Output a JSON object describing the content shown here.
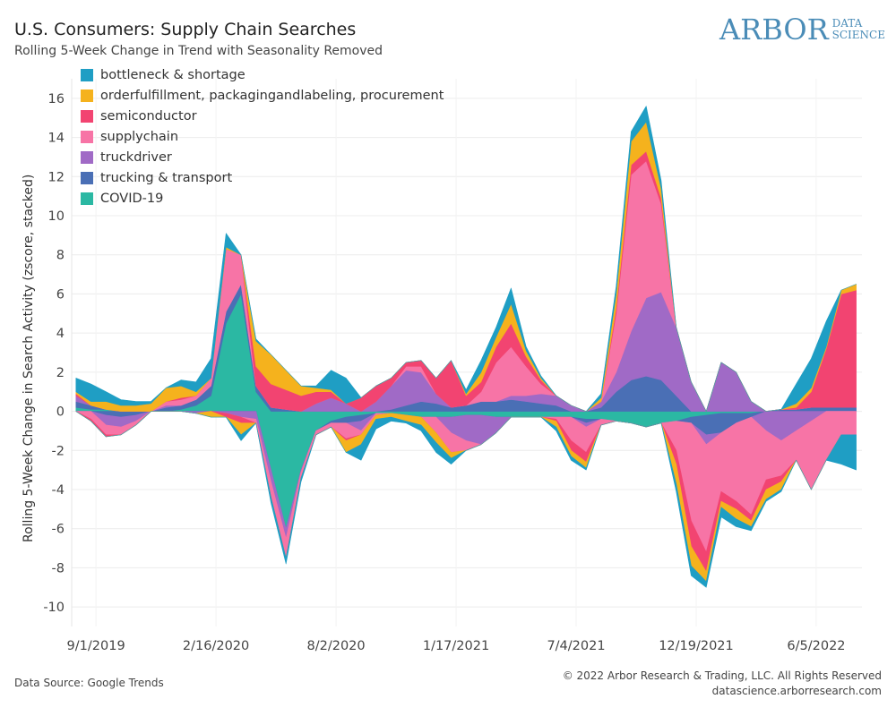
{
  "header": {
    "title": "U.S. Consumers: Supply Chain Searches",
    "subtitle": "Rolling 5-Week Change in Trend with Seasonality Removed"
  },
  "logo": {
    "big": "ARBOR",
    "small_top": "DATA",
    "small_bottom": "SCIENCE"
  },
  "footer": {
    "source": "Data Source: Google Trends",
    "copyright": "© 2022 Arbor Research & Trading, LLC. All Rights Reserved",
    "url": "datascience.arborresearch.com"
  },
  "chart_data": {
    "type": "area",
    "stacked": true,
    "title": "U.S. Consumers: Supply Chain Searches",
    "subtitle": "Rolling 5-Week Change in Trend with Seasonality Removed",
    "xlabel": "",
    "ylabel": "Rolling 5-Week Change in Search Activity (zscore, stacked)",
    "ylim": [
      -11,
      17
    ],
    "yticks": [
      -10,
      -8,
      -6,
      -4,
      -2,
      0,
      2,
      4,
      6,
      8,
      10,
      12,
      14,
      16
    ],
    "xlim": [
      "2019-07-29",
      "2022-08-08"
    ],
    "xticks": [
      {
        "date": "2019-09-01",
        "label": "9/1/2019"
      },
      {
        "date": "2020-02-16",
        "label": "2/16/2020"
      },
      {
        "date": "2020-08-02",
        "label": "8/2/2020"
      },
      {
        "date": "2021-01-17",
        "label": "1/17/2021"
      },
      {
        "date": "2021-07-04",
        "label": "7/4/2021"
      },
      {
        "date": "2021-12-19",
        "label": "12/19/2021"
      },
      {
        "date": "2022-06-05",
        "label": "6/5/2022"
      }
    ],
    "grid": true,
    "legend_position": "top-left",
    "x": [
      "2019-08-04",
      "2019-08-25",
      "2019-09-15",
      "2019-10-06",
      "2019-10-27",
      "2019-11-17",
      "2019-12-08",
      "2019-12-29",
      "2020-01-19",
      "2020-02-09",
      "2020-03-01",
      "2020-03-22",
      "2020-04-12",
      "2020-05-03",
      "2020-05-24",
      "2020-06-14",
      "2020-07-05",
      "2020-07-26",
      "2020-08-16",
      "2020-09-06",
      "2020-09-27",
      "2020-10-18",
      "2020-11-08",
      "2020-11-29",
      "2020-12-20",
      "2021-01-10",
      "2021-01-31",
      "2021-02-21",
      "2021-03-14",
      "2021-04-04",
      "2021-04-25",
      "2021-05-16",
      "2021-06-06",
      "2021-06-27",
      "2021-07-18",
      "2021-08-08",
      "2021-08-29",
      "2021-09-19",
      "2021-10-10",
      "2021-10-31",
      "2021-11-21",
      "2021-12-12",
      "2022-01-02",
      "2022-01-23",
      "2022-02-13",
      "2022-03-06",
      "2022-03-27",
      "2022-04-17",
      "2022-05-08",
      "2022-05-29",
      "2022-06-19",
      "2022-07-10",
      "2022-07-31"
    ],
    "series": [
      {
        "name": "COVID-19",
        "color": "#2bb8a3",
        "values": [
          0.2,
          0.1,
          0.1,
          0,
          0,
          0,
          0,
          0.1,
          0.3,
          0.8,
          4.5,
          6,
          1,
          -3,
          -6,
          -3,
          -1,
          -0.5,
          -0.3,
          -0.2,
          -0.1,
          -0.1,
          -0.2,
          -0.3,
          -0.3,
          -0.3,
          -0.2,
          -0.2,
          -0.3,
          -0.3,
          -0.3,
          -0.3,
          -0.3,
          -0.3,
          -0.4,
          -0.4,
          -0.5,
          -0.6,
          -0.8,
          -0.6,
          -0.5,
          -0.3,
          -0.2,
          -0.1,
          -0.1,
          -0.1,
          0,
          0,
          0,
          0,
          0,
          0,
          0
        ]
      },
      {
        "name": "trucking & transport",
        "color": "#4a6fb5",
        "values": [
          0.3,
          0.2,
          -0.2,
          -0.3,
          -0.2,
          0,
          0.2,
          0.2,
          0.3,
          0.5,
          0.6,
          0.5,
          0.3,
          0.2,
          0.1,
          0,
          0,
          -0.1,
          -0.3,
          -0.3,
          0,
          0.1,
          0.3,
          0.5,
          0.4,
          0.2,
          0.3,
          0.5,
          0.5,
          0.6,
          0.5,
          0.4,
          0.3,
          0,
          -0.2,
          0.2,
          1,
          1.6,
          1.8,
          1.6,
          0.8,
          -0.3,
          -1,
          -1,
          -0.5,
          -0.2,
          0,
          0.1,
          0.1,
          0.2,
          0.2,
          0.2,
          0.2
        ]
      },
      {
        "name": "truckdriver",
        "color": "#a06ac6",
        "values": [
          0.3,
          0,
          -0.5,
          -0.5,
          -0.3,
          0,
          0.1,
          0,
          -0.1,
          0,
          -0.1,
          -0.3,
          -0.4,
          -0.6,
          -0.5,
          -0.1,
          0.4,
          0.7,
          0.4,
          -0.5,
          0.5,
          1.2,
          1.8,
          1.5,
          0.5,
          -0.8,
          -1.3,
          -1.5,
          -0.8,
          0.2,
          0.3,
          0.5,
          0.5,
          0.3,
          -0.2,
          0.3,
          1,
          2.5,
          4,
          4.5,
          3.5,
          1.5,
          -0.5,
          2.5,
          2,
          0.5,
          -1,
          -1.5,
          -1,
          -0.5,
          0,
          0,
          0
        ]
      },
      {
        "name": "supplychain",
        "color": "#f774a6",
        "values": [
          0,
          -0.4,
          -0.5,
          -0.4,
          -0.2,
          0,
          0.2,
          0.3,
          0.2,
          0.4,
          3.2,
          1.5,
          -0.2,
          -0.8,
          -1,
          -0.3,
          -0.2,
          -0.2,
          -0.8,
          -0.2,
          -0.1,
          0,
          0.2,
          0.3,
          -0.8,
          -1,
          -0.5,
          0.5,
          2,
          2.5,
          1.5,
          0.5,
          -0.1,
          -1.2,
          -1.3,
          -0.3,
          3,
          8,
          7,
          4.5,
          -1.5,
          -5,
          -5.5,
          -3,
          -4,
          -5,
          -2.5,
          -1.8,
          -1.5,
          -3.5,
          -2.5,
          -1.2,
          -1.2
        ]
      },
      {
        "name": "semiconductor",
        "color": "#f24471",
        "values": [
          0.1,
          -0.1,
          -0.1,
          0,
          0,
          0,
          0,
          0.1,
          0,
          0,
          -0.2,
          -0.3,
          1,
          1.2,
          1,
          0.8,
          0.6,
          0.3,
          -0.1,
          0.7,
          0.8,
          0.4,
          0.2,
          0.3,
          0.8,
          2.4,
          0.5,
          0.5,
          0.8,
          1.2,
          0.5,
          0.2,
          -0.1,
          -0.5,
          -0.5,
          0,
          0.3,
          0.5,
          0.5,
          0.3,
          -0.7,
          -1.3,
          -1,
          -0.5,
          -0.4,
          -0.3,
          -0.5,
          -0.3,
          0.1,
          0.8,
          3,
          5.8,
          6
        ]
      },
      {
        "name": "orderfulfillment, packagingandlabeling, procurement",
        "color": "#f5b21d",
        "values": [
          0.1,
          0.2,
          0.4,
          0.3,
          0.3,
          0.4,
          0.7,
          0.6,
          0.2,
          -0.3,
          0.1,
          -0.6,
          1.3,
          1.5,
          1,
          0.5,
          0.2,
          0.1,
          -0.6,
          -0.5,
          -0.2,
          -0.2,
          -0.3,
          -0.4,
          -0.5,
          -0.3,
          0.1,
          0.5,
          0.5,
          1,
          0.3,
          0.1,
          -0.3,
          -0.3,
          -0.3,
          0.2,
          0.7,
          1.2,
          1.5,
          0.5,
          -1,
          -1,
          -0.5,
          -0.3,
          -0.5,
          -0.3,
          -0.5,
          -0.4,
          0.2,
          0.2,
          0.1,
          0.2,
          0.3
        ]
      },
      {
        "name": "bottleneck & shortage",
        "color": "#1f9ec4",
        "values": [
          0.7,
          0.9,
          0.5,
          0.3,
          0.2,
          0.1,
          0,
          0.3,
          0.5,
          1,
          0.7,
          -0.3,
          0.1,
          -0.3,
          -0.3,
          -0.2,
          0.1,
          1,
          1.3,
          -0.8,
          -0.5,
          -0.2,
          -0.1,
          -0.3,
          -0.5,
          -0.3,
          0.2,
          0.6,
          0.5,
          0.8,
          0.2,
          0.1,
          -0.2,
          -0.2,
          -0.1,
          0.2,
          0.4,
          0.5,
          0.8,
          0.4,
          -0.4,
          -0.5,
          -0.3,
          -0.5,
          -0.4,
          -0.2,
          -0.1,
          -0.1,
          1,
          1.5,
          1.3,
          -1.5,
          -1.8
        ]
      }
    ],
    "legend_order": [
      "bottleneck & shortage",
      "orderfulfillment, packagingandlabeling, procurement",
      "semiconductor",
      "supplychain",
      "truckdriver",
      "trucking & transport",
      "COVID-19"
    ]
  }
}
